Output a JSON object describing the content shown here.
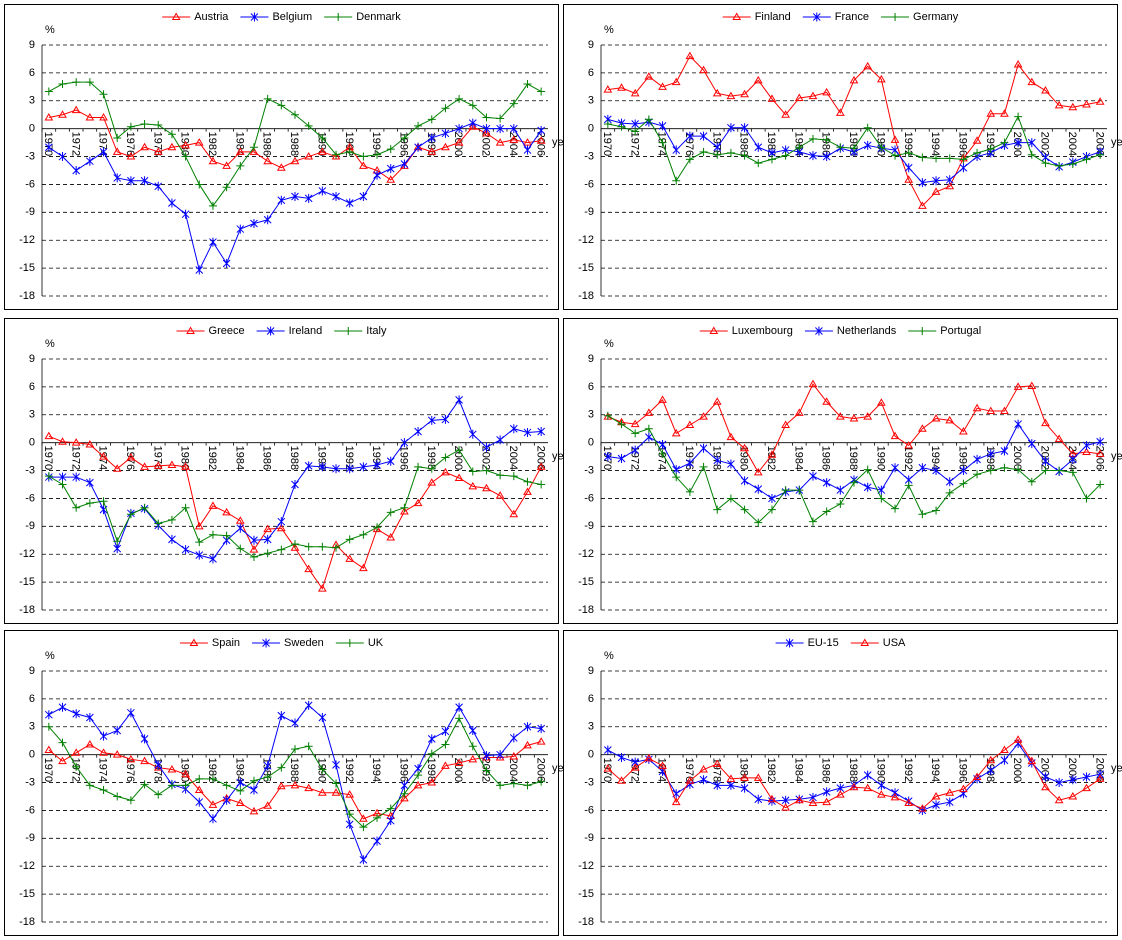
{
  "chart_data": [
    {
      "type": "line",
      "ylabel": "%",
      "xlabel": "year",
      "ylim": [
        -18,
        9
      ],
      "yticks": [
        9,
        6,
        3,
        0,
        -3,
        -6,
        -9,
        -12,
        -15,
        -18
      ],
      "grid": true,
      "categories": [
        "1970",
        null,
        "1972",
        null,
        "1974",
        null,
        "1976",
        null,
        "1978",
        null,
        "1980",
        null,
        "1982",
        null,
        "1984",
        null,
        "1986",
        null,
        "1988",
        null,
        "1990",
        null,
        "1992",
        null,
        "1994",
        null,
        "1996",
        null,
        "1998",
        null,
        "2000",
        null,
        "2002",
        null,
        "2004",
        null,
        "2006"
      ],
      "series": [
        {
          "name": "Austria",
          "color": "#ff0000",
          "marker": "triangle",
          "values": [
            1.2,
            1.5,
            2.0,
            1.2,
            1.2,
            -2.5,
            -3.0,
            -2.0,
            -2.5,
            -2.0,
            -1.8,
            -1.5,
            -3.5,
            -4.0,
            -2.5,
            -2.5,
            -3.5,
            -4.2,
            -3.5,
            -3.0,
            -2.5,
            -3.0,
            -2.0,
            -4.0,
            -4.5,
            -5.5,
            -4.0,
            -2.0,
            -2.5,
            -2.0,
            -1.5,
            0.2,
            -0.5,
            -1.5,
            -1.2,
            -1.5,
            -1.3
          ]
        },
        {
          "name": "Belgium",
          "color": "#0000ff",
          "marker": "star",
          "values": [
            -2.0,
            -3.0,
            -4.5,
            -3.5,
            -2.5,
            -5.3,
            -5.6,
            -5.6,
            -6.2,
            -8.0,
            -9.2,
            -15.2,
            -12.2,
            -14.5,
            -10.8,
            -10.2,
            -9.8,
            -7.7,
            -7.3,
            -7.5,
            -6.7,
            -7.3,
            -8.0,
            -7.3,
            -5.0,
            -4.3,
            -3.8,
            -2.0,
            -1.0,
            -0.5,
            0.0,
            0.6,
            0.0,
            0.0,
            0.0,
            -2.3,
            -0.2
          ]
        },
        {
          "name": "Denmark",
          "color": "#008000",
          "marker": "plus",
          "values": [
            4.0,
            4.8,
            5.0,
            5.0,
            3.7,
            -1.0,
            0.2,
            0.5,
            0.4,
            -0.6,
            -3.0,
            -6.0,
            -8.3,
            -6.3,
            -4.0,
            -2.0,
            3.2,
            2.5,
            1.5,
            0.3,
            -1.0,
            -2.8,
            -2.5,
            -3.0,
            -2.8,
            -2.2,
            -1.0,
            0.3,
            1.0,
            2.2,
            3.2,
            2.5,
            1.2,
            1.1,
            2.7,
            4.8,
            4.0
          ]
        }
      ]
    },
    {
      "type": "line",
      "ylabel": "%",
      "xlabel": "year",
      "ylim": [
        -18,
        9
      ],
      "yticks": [
        9,
        6,
        3,
        0,
        -3,
        -6,
        -9,
        -12,
        -15,
        -18
      ],
      "grid": true,
      "categories": [
        "1970",
        null,
        "1972",
        null,
        "1974",
        null,
        "1976",
        null,
        "1978",
        null,
        "1980",
        null,
        "1982",
        null,
        "1984",
        null,
        "1986",
        null,
        "1988",
        null,
        "1990",
        null,
        "1992",
        null,
        "1994",
        null,
        "1996",
        null,
        "1998",
        null,
        "2000",
        null,
        "2002",
        null,
        "2004",
        null,
        "2006"
      ],
      "series": [
        {
          "name": "Finland",
          "color": "#ff0000",
          "marker": "triangle",
          "values": [
            4.2,
            4.4,
            3.8,
            5.6,
            4.5,
            5.0,
            7.8,
            6.3,
            3.8,
            3.5,
            3.7,
            5.2,
            3.2,
            1.5,
            3.3,
            3.5,
            3.9,
            1.7,
            5.2,
            6.7,
            5.3,
            -1.2,
            -5.5,
            -8.3,
            -6.8,
            -6.2,
            -3.2,
            -1.3,
            1.6,
            1.6,
            6.9,
            5.0,
            4.1,
            2.5,
            2.3,
            2.6,
            2.9
          ]
        },
        {
          "name": "France",
          "color": "#0000ff",
          "marker": "star",
          "values": [
            1.0,
            0.6,
            0.5,
            0.7,
            0.3,
            -2.3,
            -0.8,
            -0.8,
            -2.0,
            0.1,
            0.1,
            -2.0,
            -2.6,
            -2.3,
            -2.5,
            -2.9,
            -3.0,
            -2.1,
            -2.5,
            -1.8,
            -2.1,
            -2.3,
            -4.2,
            -5.8,
            -5.6,
            -5.5,
            -4.2,
            -3.0,
            -2.6,
            -1.8,
            -1.5,
            -1.5,
            -3.1,
            -4.1,
            -3.6,
            -3.0,
            -2.5
          ]
        },
        {
          "name": "Germany",
          "color": "#008000",
          "marker": "plus",
          "values": [
            0.5,
            0.2,
            -0.3,
            1.0,
            -1.5,
            -5.6,
            -3.3,
            -2.5,
            -2.8,
            -2.6,
            -2.9,
            -3.7,
            -3.3,
            -2.9,
            -2.0,
            -1.1,
            -1.2,
            -2.0,
            -2.1,
            0.1,
            -2.0,
            -2.9,
            -2.6,
            -3.1,
            -3.2,
            -3.2,
            -3.3,
            -2.6,
            -2.2,
            -1.5,
            1.3,
            -2.8,
            -3.7,
            -4.0,
            -3.8,
            -3.3,
            -2.8
          ]
        }
      ]
    },
    {
      "type": "line",
      "ylabel": "%",
      "xlabel": "year",
      "ylim": [
        -18,
        9
      ],
      "yticks": [
        9,
        6,
        3,
        0,
        -3,
        -6,
        -9,
        -12,
        -15,
        -18
      ],
      "grid": true,
      "categories": [
        "1970",
        null,
        "1972",
        null,
        "1974",
        null,
        "1976",
        null,
        "1978",
        null,
        "1980",
        null,
        "1982",
        null,
        "1984",
        null,
        "1986",
        null,
        "1988",
        null,
        "1990",
        null,
        "1992",
        null,
        "1994",
        null,
        "1996",
        null,
        "1998",
        null,
        "2000",
        null,
        "2002",
        null,
        "2004",
        null,
        "2006"
      ],
      "series": [
        {
          "name": "Greece",
          "color": "#ff0000",
          "marker": "triangle",
          "values": [
            0.7,
            0.1,
            0.0,
            -0.2,
            -1.5,
            -2.8,
            -1.6,
            -2.6,
            -2.5,
            -2.4,
            -2.6,
            -9.0,
            -6.8,
            -7.5,
            -8.4,
            -11.5,
            -9.3,
            -9.2,
            -11.3,
            -13.6,
            -15.7,
            -11.0,
            -12.5,
            -13.5,
            -9.3,
            -10.2,
            -7.4,
            -6.5,
            -4.3,
            -3.2,
            -3.8,
            -4.7,
            -4.9,
            -5.7,
            -7.7,
            -5.3,
            -2.6
          ]
        },
        {
          "name": "Ireland",
          "color": "#0000ff",
          "marker": "star",
          "values": [
            -3.7,
            -3.7,
            -3.7,
            -4.3,
            -7.2,
            -11.4,
            -7.6,
            -7.1,
            -8.9,
            -10.4,
            -11.5,
            -12.1,
            -12.5,
            -10.5,
            -9.2,
            -10.5,
            -10.4,
            -8.5,
            -4.5,
            -2.5,
            -2.6,
            -2.8,
            -2.8,
            -2.6,
            -2.4,
            -2.0,
            0.0,
            1.2,
            2.4,
            2.5,
            4.6,
            0.9,
            -0.5,
            0.3,
            1.5,
            1.1,
            1.2
          ]
        },
        {
          "name": "Italy",
          "color": "#008000",
          "marker": "plus",
          "values": [
            -3.6,
            -4.5,
            -7.0,
            -6.5,
            -6.3,
            -10.6,
            -7.7,
            -7.0,
            -8.7,
            -8.3,
            -7.0,
            -10.7,
            -9.9,
            -10.0,
            -11.4,
            -12.3,
            -11.9,
            -11.5,
            -10.9,
            -11.2,
            -11.2,
            -11.3,
            -10.4,
            -9.9,
            -9.1,
            -7.5,
            -7.0,
            -2.6,
            -2.8,
            -1.6,
            -0.8,
            -3.1,
            -3.0,
            -3.5,
            -3.6,
            -4.2,
            -4.5
          ]
        }
      ]
    },
    {
      "type": "line",
      "ylabel": "%",
      "xlabel": "year",
      "ylim": [
        -18,
        9
      ],
      "yticks": [
        9,
        6,
        3,
        0,
        -3,
        -6,
        -9,
        -12,
        -15,
        -18
      ],
      "grid": true,
      "categories": [
        "1970",
        null,
        "1972",
        null,
        "1974",
        null,
        "1976",
        null,
        "1978",
        null,
        "1980",
        null,
        "1982",
        null,
        "1984",
        null,
        "1986",
        null,
        "1988",
        null,
        "1990",
        null,
        "1992",
        null,
        "1994",
        null,
        "1996",
        null,
        "1998",
        null,
        "2000",
        null,
        "2002",
        null,
        "2004",
        null,
        "2006"
      ],
      "series": [
        {
          "name": "Luxembourg",
          "color": "#ff0000",
          "marker": "triangle",
          "values": [
            2.8,
            2.2,
            2.0,
            3.2,
            4.6,
            1.0,
            1.9,
            2.8,
            4.4,
            0.6,
            -0.6,
            -3.2,
            -1.3,
            1.9,
            3.2,
            6.3,
            4.4,
            2.8,
            2.6,
            2.8,
            4.3,
            0.7,
            -0.3,
            1.5,
            2.6,
            2.4,
            1.2,
            3.7,
            3.4,
            3.4,
            6.0,
            6.1,
            2.1,
            0.4,
            -1.2,
            -1.0,
            -1.2
          ]
        },
        {
          "name": "Netherlands",
          "color": "#0000ff",
          "marker": "star",
          "values": [
            -1.5,
            -1.7,
            -0.8,
            0.6,
            -0.2,
            -2.9,
            -2.2,
            -0.6,
            -1.9,
            -2.3,
            -4.1,
            -5.0,
            -6.0,
            -5.3,
            -5.1,
            -3.6,
            -4.3,
            -5.1,
            -4.0,
            -4.8,
            -5.1,
            -2.7,
            -4.0,
            -2.7,
            -3.0,
            -4.2,
            -3.0,
            -1.8,
            -1.2,
            -0.9,
            2.0,
            -0.1,
            -2.0,
            -3.1,
            -1.8,
            -0.3,
            0.1
          ]
        },
        {
          "name": "Portugal",
          "color": "#008000",
          "marker": "plus",
          "values": [
            2.9,
            2.0,
            1.0,
            1.5,
            -1.2,
            -3.7,
            -5.3,
            -2.6,
            -7.2,
            -6.0,
            -7.2,
            -8.6,
            -7.2,
            -5.1,
            -5.1,
            -8.5,
            -7.4,
            -6.6,
            -4.3,
            -2.9,
            -6.0,
            -7.1,
            -4.6,
            -7.7,
            -7.3,
            -5.4,
            -4.4,
            -3.4,
            -3.0,
            -2.7,
            -2.9,
            -4.2,
            -3.0,
            -3.0,
            -3.2,
            -6.0,
            -4.5
          ]
        }
      ]
    },
    {
      "type": "line",
      "ylabel": "%",
      "xlabel": "year",
      "ylim": [
        -18,
        9
      ],
      "yticks": [
        9,
        6,
        3,
        0,
        -3,
        -6,
        -9,
        -12,
        -15,
        -18
      ],
      "grid": true,
      "categories": [
        "1970",
        null,
        "1972",
        null,
        "1974",
        null,
        "1976",
        null,
        "1978",
        null,
        "1980",
        null,
        "1982",
        null,
        "1984",
        null,
        "1986",
        null,
        "1988",
        null,
        "1990",
        null,
        "1992",
        null,
        "1994",
        null,
        "1996",
        null,
        "1998",
        null,
        "2000",
        null,
        "2002",
        null,
        "2004",
        null,
        "2006"
      ],
      "series": [
        {
          "name": "Spain",
          "color": "#ff0000",
          "marker": "triangle",
          "values": [
            0.5,
            -0.7,
            0.2,
            1.1,
            0.2,
            0.0,
            -0.5,
            -0.7,
            -1.4,
            -1.6,
            -2.1,
            -3.8,
            -5.4,
            -4.7,
            -5.2,
            -6.1,
            -5.5,
            -3.4,
            -3.3,
            -3.6,
            -4.1,
            -4.1,
            -4.3,
            -6.9,
            -6.3,
            -6.6,
            -4.7,
            -3.3,
            -3.0,
            -1.2,
            -0.9,
            -0.5,
            -0.3,
            -0.3,
            -0.2,
            1.0,
            1.4
          ]
        },
        {
          "name": "Sweden",
          "color": "#0000ff",
          "marker": "star",
          "values": [
            4.3,
            5.1,
            4.4,
            4.0,
            2.0,
            2.6,
            4.5,
            1.7,
            -1.1,
            -3.2,
            -3.7,
            -5.1,
            -6.9,
            -4.9,
            -3.0,
            -3.8,
            -1.2,
            4.2,
            3.4,
            5.3,
            4.0,
            -1.1,
            -7.5,
            -11.3,
            -9.3,
            -7.1,
            -3.3,
            -1.5,
            1.7,
            2.5,
            5.1,
            2.6,
            -0.1,
            0.0,
            1.8,
            3.0,
            2.8
          ]
        },
        {
          "name": "UK",
          "color": "#008000",
          "marker": "plus",
          "values": [
            3.0,
            1.3,
            -1.3,
            -3.3,
            -3.8,
            -4.5,
            -4.9,
            -3.2,
            -4.3,
            -3.3,
            -3.3,
            -2.6,
            -2.6,
            -3.3,
            -3.9,
            -2.8,
            -2.4,
            -1.4,
            0.6,
            0.9,
            -1.6,
            -3.1,
            -6.4,
            -7.8,
            -6.8,
            -5.8,
            -4.2,
            -2.2,
            0.1,
            1.1,
            3.9,
            0.9,
            -1.7,
            -3.3,
            -3.1,
            -3.3,
            -2.9
          ]
        }
      ]
    },
    {
      "type": "line",
      "ylabel": "%",
      "xlabel": "year",
      "ylim": [
        -18,
        9
      ],
      "yticks": [
        9,
        6,
        3,
        0,
        -3,
        -6,
        -9,
        -12,
        -15,
        -18
      ],
      "grid": true,
      "categories": [
        "1970",
        null,
        "1972",
        null,
        "1974",
        null,
        "1976",
        null,
        "1978",
        null,
        "1980",
        null,
        "1982",
        null,
        "1984",
        null,
        "1986",
        null,
        "1988",
        null,
        "1990",
        null,
        "1992",
        null,
        "1994",
        null,
        "1996",
        null,
        "1998",
        null,
        "2000",
        null,
        "2002",
        null,
        "2004",
        null,
        "2006"
      ],
      "series": [
        {
          "name": "EU-15",
          "color": "#0000ff",
          "marker": "star",
          "values": [
            0.5,
            -0.3,
            -0.8,
            -0.5,
            -1.8,
            -4.2,
            -3.2,
            -2.7,
            -3.3,
            -3.3,
            -3.6,
            -4.8,
            -5.0,
            -4.9,
            -4.8,
            -4.6,
            -4.0,
            -3.6,
            -3.3,
            -2.2,
            -3.3,
            -4.1,
            -5.0,
            -6.0,
            -5.4,
            -5.1,
            -4.2,
            -2.6,
            -1.7,
            -0.6,
            1.2,
            -0.9,
            -2.4,
            -3.0,
            -2.7,
            -2.4,
            -2.1
          ]
        },
        {
          "name": "USA",
          "color": "#ff0000",
          "marker": "triangle",
          "values": [
            -1.5,
            -2.8,
            -1.4,
            -0.4,
            -1.2,
            -5.1,
            -2.8,
            -1.6,
            -1.0,
            -2.6,
            -2.5,
            -2.5,
            -4.8,
            -5.7,
            -4.9,
            -5.2,
            -5.1,
            -4.3,
            -3.5,
            -3.6,
            -4.3,
            -4.6,
            -5.2,
            -5.8,
            -4.5,
            -4.1,
            -3.7,
            -2.4,
            -0.6,
            0.5,
            1.6,
            -0.7,
            -3.5,
            -4.9,
            -4.5,
            -3.6,
            -2.6
          ]
        }
      ]
    }
  ]
}
